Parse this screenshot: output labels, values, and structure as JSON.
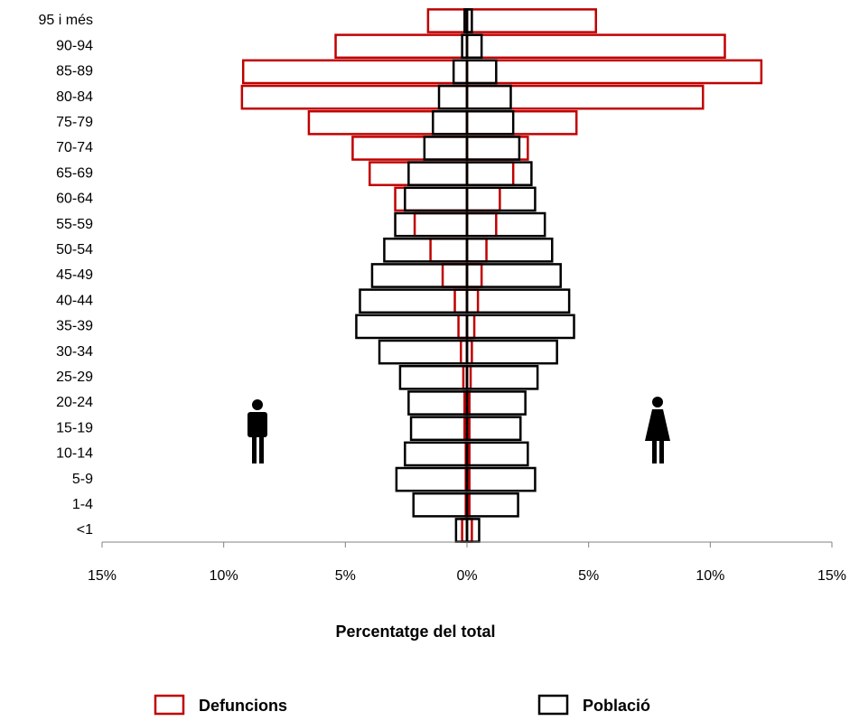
{
  "chart_data": {
    "type": "pyramid",
    "x_label": "Percentatge del total",
    "categories": [
      "<1",
      "1-4",
      "5-9",
      "10-14",
      "15-19",
      "20-24",
      "25-29",
      "30-34",
      "35-39",
      "40-44",
      "45-49",
      "50-54",
      "55-59",
      "60-64",
      "65-69",
      "70-74",
      "75-79",
      "80-84",
      "85-89",
      "90-94",
      "95 i més"
    ],
    "series": [
      {
        "name": "Defuncions",
        "color": "#c00000",
        "values_men": [
          -0.2,
          -0.05,
          -0.05,
          -0.05,
          -0.1,
          -0.1,
          -0.15,
          -0.25,
          -0.35,
          -0.5,
          -1.0,
          -1.5,
          -2.15,
          -2.95,
          -4.0,
          -4.7,
          -6.5,
          -9.25,
          -9.2,
          -5.4,
          -1.6
        ],
        "values_women": [
          0.2,
          0.1,
          0.1,
          0.1,
          0.1,
          0.1,
          0.15,
          0.2,
          0.3,
          0.45,
          0.6,
          0.8,
          1.2,
          1.35,
          1.9,
          2.5,
          4.5,
          9.7,
          12.1,
          10.6,
          5.3
        ]
      },
      {
        "name": "Població",
        "color": "#000000",
        "values_men": [
          -0.45,
          -2.2,
          -2.9,
          -2.55,
          -2.3,
          -2.4,
          -2.75,
          -3.6,
          -4.55,
          -4.4,
          -3.9,
          -3.4,
          -2.95,
          -2.55,
          -2.4,
          -1.75,
          -1.4,
          -1.15,
          -0.55,
          -0.2,
          -0.1
        ],
        "values_women": [
          0.5,
          2.1,
          2.8,
          2.5,
          2.2,
          2.4,
          2.9,
          3.7,
          4.4,
          4.2,
          3.85,
          3.5,
          3.2,
          2.8,
          2.65,
          2.15,
          1.9,
          1.8,
          1.2,
          0.6,
          0.2
        ]
      }
    ],
    "xlim": [
      -15,
      15
    ],
    "xticks": [
      {
        "value": -15,
        "label": "15%"
      },
      {
        "value": -10,
        "label": "10%"
      },
      {
        "value": -5,
        "label": "5%"
      },
      {
        "value": 0,
        "label": "0%"
      },
      {
        "value": 5,
        "label": "5%"
      },
      {
        "value": 10,
        "label": "10%"
      },
      {
        "value": 15,
        "label": "15%"
      }
    ],
    "legend": "bottom"
  }
}
